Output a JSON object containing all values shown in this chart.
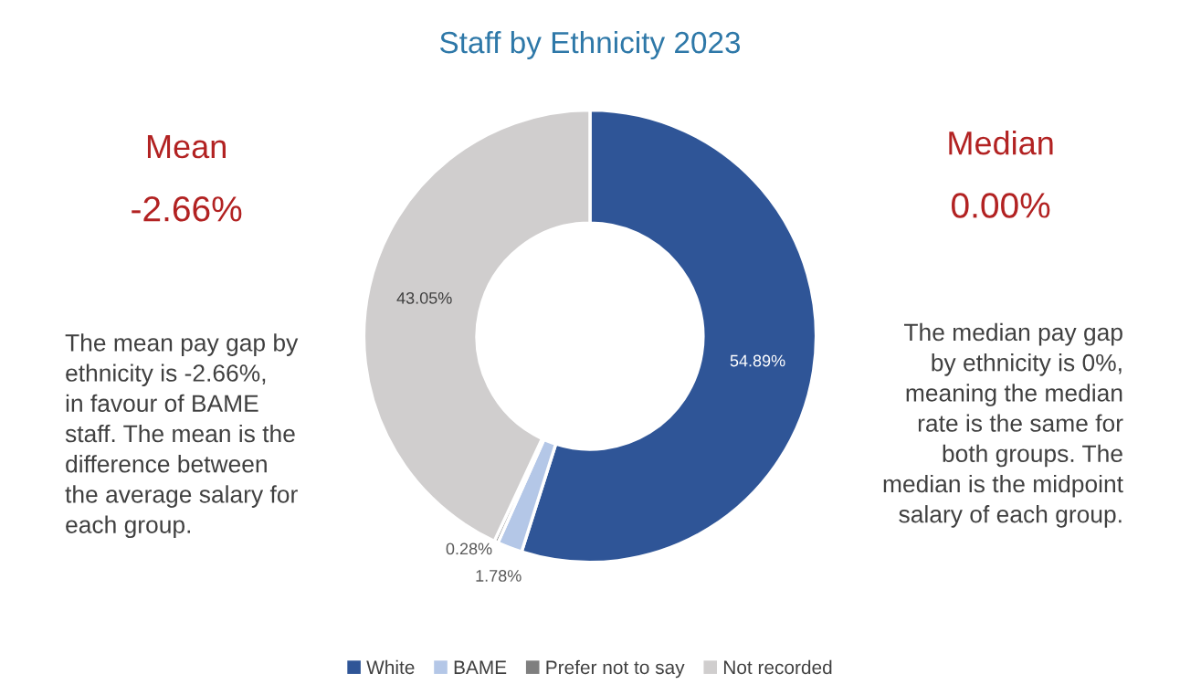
{
  "chart_data": {
    "type": "donut",
    "title": "Staff by Ethnicity 2023",
    "categories": [
      "White",
      "BAME",
      "Prefer not to say",
      "Not recorded"
    ],
    "values": [
      54.89,
      1.78,
      0.28,
      43.05
    ],
    "colors": [
      "#2f5597",
      "#b4c7e7",
      "#7f7f7f",
      "#d0cece"
    ],
    "value_labels": [
      "54.89%",
      "1.78%",
      "0.28%",
      "43.05%"
    ],
    "legend": "bottom",
    "annotations": [
      "Mean",
      "-2.66%",
      "The mean pay gap by\nethnicity is -2.66%,\nin favour of BAME\nstaff. The mean is the\ndifference between\nthe average salary for\neach group.",
      "Median",
      "0.00%",
      "The median pay gap\nby ethnicity is 0%,\nmeaning the median\nrate is the same for\nboth groups. The\nmedian is the midpoint\nsalary of each group."
    ]
  }
}
